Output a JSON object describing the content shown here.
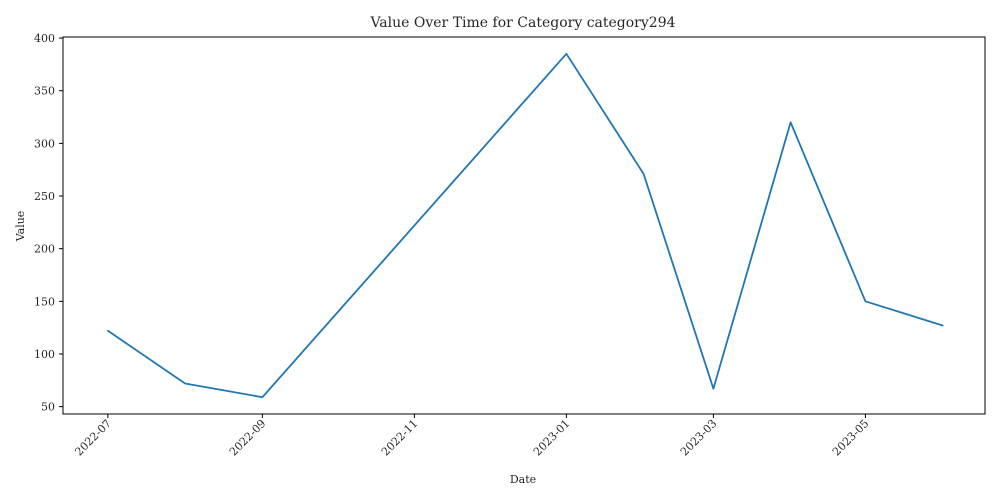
{
  "chart_data": {
    "type": "line",
    "title": "Value Over Time for Category category294",
    "xlabel": "Date",
    "ylabel": "Value",
    "x_ticks": [
      "2022-07",
      "2022-09",
      "2022-11",
      "2023-01",
      "2023-03",
      "2023-05"
    ],
    "y_ticks": [
      50,
      100,
      150,
      200,
      250,
      300,
      350,
      400
    ],
    "xlim": [
      "2022-06-13",
      "2023-06-18"
    ],
    "ylim": [
      43,
      401
    ],
    "grid": false,
    "series": [
      {
        "color": "#1f77b4",
        "points": [
          {
            "x": "2022-07-01",
            "y": 122
          },
          {
            "x": "2022-08-01",
            "y": 72
          },
          {
            "x": "2022-09-01",
            "y": 59
          },
          {
            "x": "2023-01-01",
            "y": 385
          },
          {
            "x": "2023-02-01",
            "y": 271
          },
          {
            "x": "2023-03-01",
            "y": 67
          },
          {
            "x": "2023-04-01",
            "y": 320
          },
          {
            "x": "2023-05-01",
            "y": 150
          },
          {
            "x": "2023-06-01",
            "y": 127
          }
        ]
      }
    ]
  }
}
